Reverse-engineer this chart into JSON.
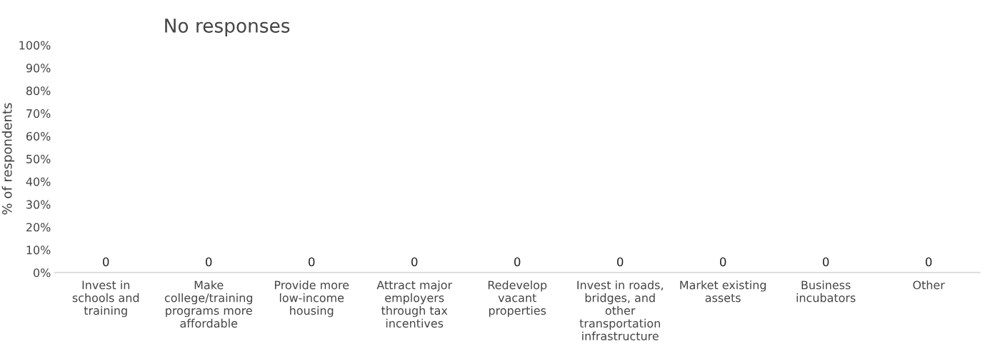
{
  "chart_data": {
    "type": "bar",
    "title": "No responses",
    "ylabel": "% of respondents",
    "categories": [
      "Invest in\nschools and\ntraining",
      "Make\ncollege/training\nprograms more\naffordable",
      "Provide more\nlow-income\nhousing",
      "Attract major\nemployers\nthrough tax\nincentives",
      "Redevelop\nvacant\nproperties",
      "Invest in roads,\nbridges, and\nother\ntransportation\ninfrastructure",
      "Market existing\nassets",
      "Business\nincubators",
      "Other"
    ],
    "values": [
      0,
      0,
      0,
      0,
      0,
      0,
      0,
      0,
      0
    ],
    "data_labels": true,
    "ylim": [
      0,
      100
    ],
    "yticks": [
      {
        "value": 0,
        "label": "0%"
      },
      {
        "value": 10,
        "label": "10%"
      },
      {
        "value": 20,
        "label": "20%"
      },
      {
        "value": 30,
        "label": "30%"
      },
      {
        "value": 40,
        "label": "40%"
      },
      {
        "value": 50,
        "label": "50%"
      },
      {
        "value": 60,
        "label": "60%"
      },
      {
        "value": 70,
        "label": "70%"
      },
      {
        "value": 80,
        "label": "80%"
      },
      {
        "value": 90,
        "label": "90%"
      },
      {
        "value": 100,
        "label": "100%"
      }
    ],
    "grid": false
  }
}
